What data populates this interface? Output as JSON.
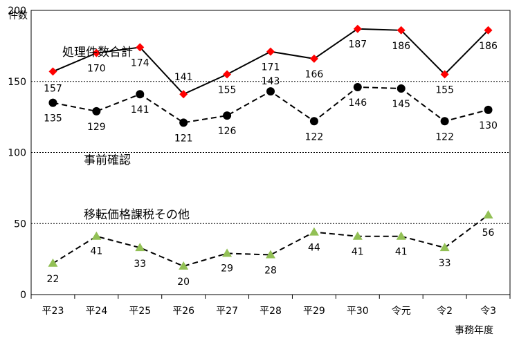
{
  "chart_data": {
    "type": "line",
    "ylabel": "件数",
    "xlabel": "事務年度",
    "ylim": [
      0,
      200
    ],
    "yticks": [
      0,
      50,
      100,
      150,
      200
    ],
    "grid": true,
    "categories": [
      "平23",
      "平24",
      "平25",
      "平26",
      "平27",
      "平28",
      "平29",
      "平30",
      "令元",
      "令2",
      "令3"
    ],
    "series": [
      {
        "name": "処理件数合計",
        "values": [
          157,
          170,
          174,
          141,
          155,
          171,
          166,
          187,
          186,
          155,
          186
        ],
        "color": "#ff0000",
        "marker": "diamond",
        "line": "solid"
      },
      {
        "name": "事前確認",
        "values": [
          135,
          129,
          141,
          121,
          126,
          143,
          122,
          146,
          145,
          122,
          130
        ],
        "color": "#000000",
        "marker": "circle",
        "line": "dashed"
      },
      {
        "name": "移転価格課税その他",
        "values": [
          22,
          41,
          33,
          20,
          29,
          28,
          44,
          41,
          41,
          33,
          56
        ],
        "color": "#92c055",
        "marker": "triangle",
        "line": "dashed"
      }
    ]
  }
}
